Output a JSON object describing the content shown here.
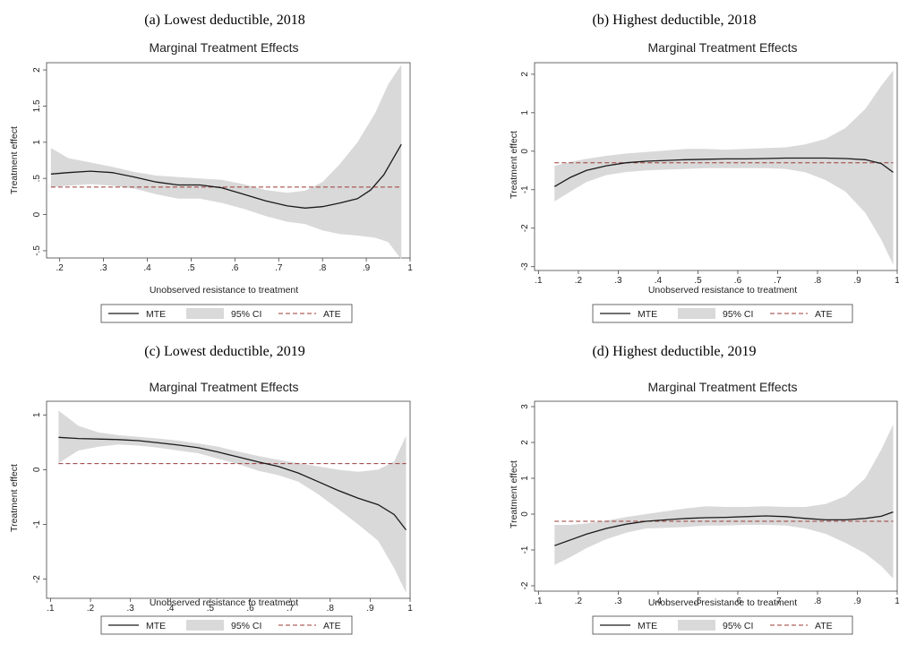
{
  "chart_data": [
    {
      "type": "line",
      "caption": "(a)   Lowest deductible, 2018",
      "title": "Marginal Treatment Effects",
      "xlabel": "Unobserved resistance to treatment",
      "ylabel": "Treatment effect",
      "xlim": [
        0.17,
        1.0
      ],
      "ylim": [
        -0.6,
        2.1
      ],
      "xticks": [
        ".2",
        ".3",
        ".4",
        ".5",
        ".6",
        ".7",
        ".8",
        ".9",
        "1"
      ],
      "yticks": [
        "-.5",
        "0",
        ".5",
        "1",
        "1.5",
        "2"
      ],
      "ate": 0.38,
      "mte": [
        [
          0.18,
          0.56
        ],
        [
          0.22,
          0.58
        ],
        [
          0.27,
          0.6
        ],
        [
          0.32,
          0.58
        ],
        [
          0.37,
          0.52
        ],
        [
          0.42,
          0.45
        ],
        [
          0.47,
          0.41
        ],
        [
          0.52,
          0.41
        ],
        [
          0.57,
          0.37
        ],
        [
          0.62,
          0.28
        ],
        [
          0.67,
          0.19
        ],
        [
          0.72,
          0.12
        ],
        [
          0.76,
          0.09
        ],
        [
          0.8,
          0.11
        ],
        [
          0.84,
          0.16
        ],
        [
          0.88,
          0.22
        ],
        [
          0.91,
          0.34
        ],
        [
          0.94,
          0.55
        ],
        [
          0.98,
          0.97
        ]
      ],
      "ci_upper": [
        [
          0.18,
          0.92
        ],
        [
          0.22,
          0.78
        ],
        [
          0.27,
          0.72
        ],
        [
          0.32,
          0.66
        ],
        [
          0.37,
          0.59
        ],
        [
          0.42,
          0.54
        ],
        [
          0.47,
          0.52
        ],
        [
          0.52,
          0.5
        ],
        [
          0.57,
          0.48
        ],
        [
          0.62,
          0.42
        ],
        [
          0.67,
          0.34
        ],
        [
          0.72,
          0.3
        ],
        [
          0.76,
          0.33
        ],
        [
          0.8,
          0.45
        ],
        [
          0.84,
          0.7
        ],
        [
          0.88,
          1.0
        ],
        [
          0.92,
          1.4
        ],
        [
          0.95,
          1.8
        ],
        [
          0.98,
          2.07
        ]
      ],
      "ci_lower": [
        [
          0.18,
          0.38
        ],
        [
          0.22,
          0.4
        ],
        [
          0.27,
          0.42
        ],
        [
          0.32,
          0.4
        ],
        [
          0.37,
          0.36
        ],
        [
          0.42,
          0.28
        ],
        [
          0.47,
          0.22
        ],
        [
          0.52,
          0.22
        ],
        [
          0.57,
          0.16
        ],
        [
          0.62,
          0.08
        ],
        [
          0.67,
          -0.02
        ],
        [
          0.72,
          -0.1
        ],
        [
          0.76,
          -0.13
        ],
        [
          0.8,
          -0.22
        ],
        [
          0.84,
          -0.27
        ],
        [
          0.88,
          -0.29
        ],
        [
          0.92,
          -0.32
        ],
        [
          0.95,
          -0.38
        ],
        [
          0.98,
          -0.62
        ]
      ]
    },
    {
      "type": "line",
      "caption": "(b)   Highest deductible, 2018",
      "title": "Marginal Treatment Effects",
      "xlabel": "Unobserved resistance to treatment",
      "ylabel": "Treatment effect",
      "xlim": [
        0.09,
        1.0
      ],
      "ylim": [
        -3.1,
        2.3
      ],
      "xticks": [
        ".1",
        ".2",
        ".3",
        ".4",
        ".5",
        ".6",
        ".7",
        ".8",
        ".9",
        "1"
      ],
      "yticks": [
        "-3",
        "-2",
        "-1",
        "0",
        "1",
        "2"
      ],
      "ate": -0.3,
      "mte": [
        [
          0.14,
          -0.92
        ],
        [
          0.18,
          -0.68
        ],
        [
          0.22,
          -0.5
        ],
        [
          0.27,
          -0.38
        ],
        [
          0.32,
          -0.3
        ],
        [
          0.37,
          -0.26
        ],
        [
          0.42,
          -0.24
        ],
        [
          0.47,
          -0.22
        ],
        [
          0.52,
          -0.21
        ],
        [
          0.57,
          -0.2
        ],
        [
          0.62,
          -0.2
        ],
        [
          0.67,
          -0.19
        ],
        [
          0.72,
          -0.18
        ],
        [
          0.77,
          -0.18
        ],
        [
          0.82,
          -0.18
        ],
        [
          0.87,
          -0.19
        ],
        [
          0.92,
          -0.22
        ],
        [
          0.96,
          -0.32
        ],
        [
          0.99,
          -0.55
        ]
      ],
      "ci_upper": [
        [
          0.14,
          -0.38
        ],
        [
          0.18,
          -0.28
        ],
        [
          0.22,
          -0.2
        ],
        [
          0.27,
          -0.12
        ],
        [
          0.32,
          -0.06
        ],
        [
          0.37,
          -0.02
        ],
        [
          0.42,
          0.02
        ],
        [
          0.47,
          0.06
        ],
        [
          0.52,
          0.06
        ],
        [
          0.57,
          0.04
        ],
        [
          0.62,
          0.06
        ],
        [
          0.67,
          0.08
        ],
        [
          0.72,
          0.1
        ],
        [
          0.77,
          0.18
        ],
        [
          0.82,
          0.32
        ],
        [
          0.87,
          0.6
        ],
        [
          0.92,
          1.1
        ],
        [
          0.96,
          1.7
        ],
        [
          0.99,
          2.1
        ]
      ],
      "ci_lower": [
        [
          0.14,
          -1.3
        ],
        [
          0.18,
          -1.05
        ],
        [
          0.22,
          -0.8
        ],
        [
          0.27,
          -0.62
        ],
        [
          0.32,
          -0.54
        ],
        [
          0.37,
          -0.5
        ],
        [
          0.42,
          -0.48
        ],
        [
          0.47,
          -0.46
        ],
        [
          0.52,
          -0.44
        ],
        [
          0.57,
          -0.44
        ],
        [
          0.62,
          -0.44
        ],
        [
          0.67,
          -0.44
        ],
        [
          0.72,
          -0.46
        ],
        [
          0.77,
          -0.55
        ],
        [
          0.82,
          -0.75
        ],
        [
          0.87,
          -1.05
        ],
        [
          0.92,
          -1.6
        ],
        [
          0.96,
          -2.3
        ],
        [
          0.99,
          -2.95
        ]
      ]
    },
    {
      "type": "line",
      "caption": "(c)   Lowest deductible, 2019",
      "title": "Marginal Treatment Effects",
      "xlabel": "Unobserved resistance to treatment",
      "ylabel": "Treatment effect",
      "xlim": [
        0.09,
        1.0
      ],
      "ylim": [
        -2.35,
        1.25
      ],
      "xticks": [
        ".1",
        ".2",
        ".3",
        ".4",
        ".5",
        ".6",
        ".7",
        ".8",
        ".9",
        "1"
      ],
      "yticks": [
        "-2",
        "-1",
        "0",
        "1"
      ],
      "ate": 0.11,
      "mte": [
        [
          0.12,
          0.59
        ],
        [
          0.17,
          0.57
        ],
        [
          0.22,
          0.56
        ],
        [
          0.27,
          0.55
        ],
        [
          0.32,
          0.53
        ],
        [
          0.37,
          0.49
        ],
        [
          0.42,
          0.45
        ],
        [
          0.47,
          0.4
        ],
        [
          0.52,
          0.32
        ],
        [
          0.57,
          0.23
        ],
        [
          0.62,
          0.14
        ],
        [
          0.67,
          0.06
        ],
        [
          0.72,
          -0.06
        ],
        [
          0.77,
          -0.22
        ],
        [
          0.82,
          -0.38
        ],
        [
          0.87,
          -0.52
        ],
        [
          0.92,
          -0.64
        ],
        [
          0.96,
          -0.82
        ],
        [
          0.99,
          -1.1
        ]
      ],
      "ci_upper": [
        [
          0.12,
          1.08
        ],
        [
          0.17,
          0.8
        ],
        [
          0.22,
          0.68
        ],
        [
          0.27,
          0.63
        ],
        [
          0.32,
          0.6
        ],
        [
          0.37,
          0.57
        ],
        [
          0.42,
          0.53
        ],
        [
          0.47,
          0.48
        ],
        [
          0.52,
          0.42
        ],
        [
          0.57,
          0.33
        ],
        [
          0.62,
          0.25
        ],
        [
          0.67,
          0.18
        ],
        [
          0.72,
          0.12
        ],
        [
          0.77,
          0.06
        ],
        [
          0.82,
          0.0
        ],
        [
          0.87,
          -0.04
        ],
        [
          0.92,
          0.0
        ],
        [
          0.96,
          0.15
        ],
        [
          0.99,
          0.62
        ]
      ],
      "ci_lower": [
        [
          0.12,
          0.12
        ],
        [
          0.17,
          0.35
        ],
        [
          0.22,
          0.42
        ],
        [
          0.27,
          0.46
        ],
        [
          0.32,
          0.44
        ],
        [
          0.37,
          0.4
        ],
        [
          0.42,
          0.35
        ],
        [
          0.47,
          0.3
        ],
        [
          0.52,
          0.2
        ],
        [
          0.57,
          0.1
        ],
        [
          0.62,
          -0.02
        ],
        [
          0.67,
          -0.1
        ],
        [
          0.72,
          -0.22
        ],
        [
          0.77,
          -0.45
        ],
        [
          0.82,
          -0.72
        ],
        [
          0.87,
          -1.0
        ],
        [
          0.92,
          -1.3
        ],
        [
          0.96,
          -1.8
        ],
        [
          0.99,
          -2.25
        ]
      ]
    },
    {
      "type": "line",
      "caption": "(d)   Highest deductible, 2019",
      "title": "Marginal Treatment Effects",
      "xlabel": "Unobserved resistance to treatment",
      "ylabel": "Treatment effect",
      "xlim": [
        0.09,
        1.0
      ],
      "ylim": [
        -2.15,
        3.15
      ],
      "xticks": [
        ".1",
        ".2",
        ".3",
        ".4",
        ".5",
        ".6",
        ".7",
        ".8",
        ".9",
        "1"
      ],
      "yticks": [
        "-2",
        "-1",
        "0",
        "1",
        "2",
        "3"
      ],
      "ate": -0.2,
      "mte": [
        [
          0.14,
          -0.88
        ],
        [
          0.18,
          -0.72
        ],
        [
          0.22,
          -0.56
        ],
        [
          0.27,
          -0.4
        ],
        [
          0.32,
          -0.28
        ],
        [
          0.37,
          -0.2
        ],
        [
          0.42,
          -0.16
        ],
        [
          0.47,
          -0.12
        ],
        [
          0.52,
          -0.1
        ],
        [
          0.57,
          -0.09
        ],
        [
          0.62,
          -0.07
        ],
        [
          0.67,
          -0.05
        ],
        [
          0.72,
          -0.07
        ],
        [
          0.77,
          -0.12
        ],
        [
          0.82,
          -0.16
        ],
        [
          0.87,
          -0.16
        ],
        [
          0.92,
          -0.12
        ],
        [
          0.96,
          -0.06
        ],
        [
          0.99,
          0.06
        ]
      ],
      "ci_upper": [
        [
          0.14,
          -0.3
        ],
        [
          0.18,
          -0.3
        ],
        [
          0.22,
          -0.26
        ],
        [
          0.27,
          -0.18
        ],
        [
          0.32,
          -0.08
        ],
        [
          0.37,
          0.0
        ],
        [
          0.42,
          0.08
        ],
        [
          0.47,
          0.16
        ],
        [
          0.52,
          0.22
        ],
        [
          0.57,
          0.2
        ],
        [
          0.62,
          0.2
        ],
        [
          0.67,
          0.22
        ],
        [
          0.72,
          0.2
        ],
        [
          0.77,
          0.2
        ],
        [
          0.82,
          0.28
        ],
        [
          0.87,
          0.5
        ],
        [
          0.92,
          1.0
        ],
        [
          0.96,
          1.8
        ],
        [
          0.99,
          2.5
        ]
      ],
      "ci_lower": [
        [
          0.14,
          -1.42
        ],
        [
          0.18,
          -1.2
        ],
        [
          0.22,
          -0.95
        ],
        [
          0.27,
          -0.7
        ],
        [
          0.32,
          -0.52
        ],
        [
          0.37,
          -0.4
        ],
        [
          0.42,
          -0.38
        ],
        [
          0.47,
          -0.36
        ],
        [
          0.52,
          -0.32
        ],
        [
          0.57,
          -0.32
        ],
        [
          0.62,
          -0.3
        ],
        [
          0.67,
          -0.3
        ],
        [
          0.72,
          -0.32
        ],
        [
          0.77,
          -0.4
        ],
        [
          0.82,
          -0.55
        ],
        [
          0.87,
          -0.8
        ],
        [
          0.92,
          -1.1
        ],
        [
          0.96,
          -1.45
        ],
        [
          0.99,
          -1.8
        ]
      ]
    }
  ],
  "legend": {
    "mte": "MTE",
    "ci": "95% CI",
    "ate": "ATE"
  },
  "colors": {
    "mte_line": "#1a1a1a",
    "ci_fill": "#d9d9d9",
    "ate_line": "#9b3a3a"
  }
}
